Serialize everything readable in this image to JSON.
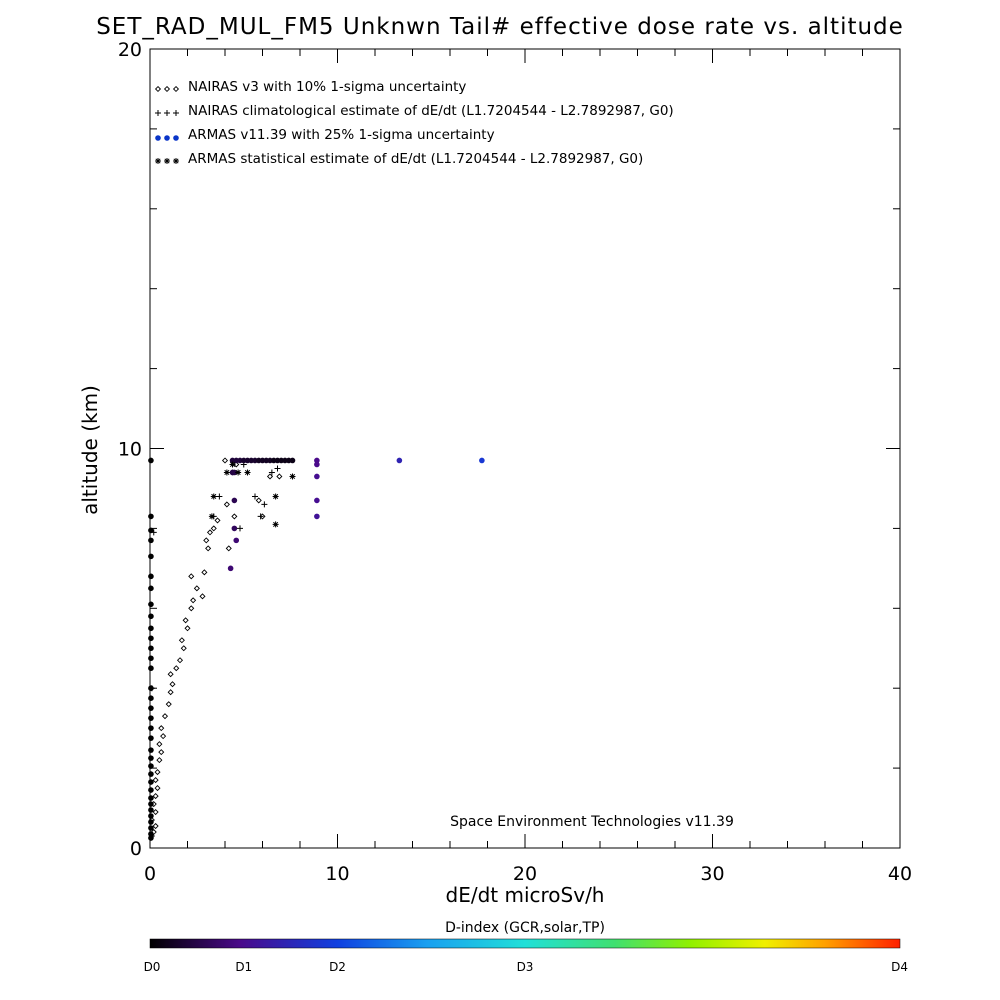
{
  "chart_data": {
    "type": "scatter",
    "title": "SET_RAD_MUL_FM5 Unknwn Tail#  effective dose rate vs. altitude",
    "xlabel": "dE/dt microSv/h",
    "ylabel": "altitude (km)",
    "xlim": [
      0,
      40
    ],
    "ylim": [
      0,
      20
    ],
    "x_ticks": [
      "0",
      "10",
      "20",
      "30",
      "40"
    ],
    "y_ticks": [
      "0",
      "10",
      "20"
    ],
    "legend_position": "top-left",
    "credit": "Space Environment Technologies v11.39",
    "colorbar": {
      "title": "D-index (GCR,solar,TP)",
      "labels": [
        "D0",
        "D1",
        "D2",
        "D3",
        "D4"
      ],
      "label_positions": [
        0,
        0.125,
        0.25,
        0.5,
        1.0
      ]
    },
    "series": [
      {
        "name": "NAIRAS v3 with 10% 1-sigma uncertainty",
        "marker": "diamond",
        "color": "#000000",
        "points": [
          [
            0.1,
            0.3
          ],
          [
            0.2,
            0.4
          ],
          [
            0.3,
            0.55
          ],
          [
            0.1,
            0.7
          ],
          [
            0.3,
            0.9
          ],
          [
            0.2,
            1.1
          ],
          [
            0.3,
            1.3
          ],
          [
            0.4,
            1.5
          ],
          [
            0.3,
            1.7
          ],
          [
            0.4,
            1.9
          ],
          [
            0.5,
            2.2
          ],
          [
            0.6,
            2.4
          ],
          [
            0.5,
            2.6
          ],
          [
            0.7,
            2.8
          ],
          [
            0.6,
            3.0
          ],
          [
            0.8,
            3.3
          ],
          [
            1.0,
            3.6
          ],
          [
            1.1,
            3.9
          ],
          [
            1.2,
            4.1
          ],
          [
            1.1,
            4.35
          ],
          [
            1.4,
            4.5
          ],
          [
            1.6,
            4.7
          ],
          [
            1.8,
            5.0
          ],
          [
            1.7,
            5.2
          ],
          [
            2.0,
            5.5
          ],
          [
            1.9,
            5.7
          ],
          [
            2.2,
            6.0
          ],
          [
            2.3,
            6.2
          ],
          [
            2.5,
            6.5
          ],
          [
            2.8,
            6.3
          ],
          [
            2.2,
            6.8
          ],
          [
            2.9,
            6.9
          ],
          [
            3.1,
            7.5
          ],
          [
            3.0,
            7.7
          ],
          [
            3.2,
            7.9
          ],
          [
            3.4,
            8.0
          ],
          [
            3.6,
            8.2
          ],
          [
            4.2,
            7.5
          ],
          [
            4.5,
            8.3
          ],
          [
            4.1,
            8.6
          ],
          [
            4.4,
            9.4
          ],
          [
            4.6,
            9.6
          ],
          [
            4.0,
            9.7
          ],
          [
            6.0,
            8.3
          ],
          [
            5.8,
            8.7
          ],
          [
            6.4,
            9.3
          ],
          [
            6.9,
            9.3
          ]
        ]
      },
      {
        "name": "NAIRAS climatological estimate of dE/dt (L1.7204544 - L2.7892987, G0)",
        "marker": "plus",
        "color": "#000000",
        "points": [
          [
            0.1,
            4.0
          ],
          [
            0.2,
            7.9
          ],
          [
            3.4,
            8.3
          ],
          [
            3.7,
            8.8
          ],
          [
            4.4,
            9.6
          ],
          [
            5.0,
            9.6
          ],
          [
            5.6,
            8.8
          ],
          [
            5.9,
            8.3
          ],
          [
            6.1,
            8.6
          ],
          [
            6.5,
            9.4
          ],
          [
            6.8,
            9.5
          ],
          [
            4.8,
            8.0
          ]
        ]
      },
      {
        "name": "ARMAS v11.39 with 25% 1-sigma uncertainty",
        "marker": "dot",
        "color": "#0a35c8",
        "points": [
          [
            0.05,
            0.25,
            0.0
          ],
          [
            0.05,
            0.35,
            0.0
          ],
          [
            0.05,
            0.5,
            0.0
          ],
          [
            0.05,
            0.65,
            0.0
          ],
          [
            0.05,
            0.8,
            0.0
          ],
          [
            0.05,
            0.95,
            0.0
          ],
          [
            0.05,
            1.1,
            0.0
          ],
          [
            0.05,
            1.25,
            0.0
          ],
          [
            0.05,
            1.45,
            0.0
          ],
          [
            0.05,
            1.65,
            0.0
          ],
          [
            0.05,
            1.85,
            0.0
          ],
          [
            0.05,
            2.05,
            0.0
          ],
          [
            0.05,
            2.25,
            0.0
          ],
          [
            0.05,
            2.45,
            0.0
          ],
          [
            0.05,
            2.75,
            0.0
          ],
          [
            0.05,
            3.0,
            0.0
          ],
          [
            0.05,
            3.25,
            0.0
          ],
          [
            0.05,
            3.5,
            0.0
          ],
          [
            0.05,
            3.75,
            0.0
          ],
          [
            0.05,
            4.0,
            0.0
          ],
          [
            0.05,
            4.5,
            0.0
          ],
          [
            0.05,
            4.75,
            0.0
          ],
          [
            0.05,
            5.0,
            0.0
          ],
          [
            0.05,
            5.25,
            0.0
          ],
          [
            0.05,
            5.5,
            0.0
          ],
          [
            0.05,
            5.8,
            0.0
          ],
          [
            0.05,
            6.1,
            0.0
          ],
          [
            0.05,
            6.5,
            0.0
          ],
          [
            0.05,
            6.8,
            0.0
          ],
          [
            0.05,
            7.3,
            0.0
          ],
          [
            0.05,
            7.7,
            0.0
          ],
          [
            0.05,
            7.95,
            0.0
          ],
          [
            0.05,
            8.3,
            0.0
          ],
          [
            0.05,
            9.7,
            0.0
          ],
          [
            4.4,
            9.7,
            0.05
          ],
          [
            4.6,
            9.7,
            0.05
          ],
          [
            4.8,
            9.7,
            0.05
          ],
          [
            5.0,
            9.7,
            0.04
          ],
          [
            5.2,
            9.7,
            0.04
          ],
          [
            5.4,
            9.7,
            0.04
          ],
          [
            5.6,
            9.7,
            0.04
          ],
          [
            5.8,
            9.7,
            0.03
          ],
          [
            6.0,
            9.7,
            0.03
          ],
          [
            6.2,
            9.7,
            0.03
          ],
          [
            6.4,
            9.7,
            0.03
          ],
          [
            6.6,
            9.7,
            0.02
          ],
          [
            6.8,
            9.7,
            0.02
          ],
          [
            7.0,
            9.7,
            0.02
          ],
          [
            7.2,
            9.7,
            0.02
          ],
          [
            7.4,
            9.7,
            0.02
          ],
          [
            7.6,
            9.7,
            0.02
          ],
          [
            4.4,
            9.4,
            0.06
          ],
          [
            4.5,
            9.4,
            0.06
          ],
          [
            4.5,
            8.7,
            0.07
          ],
          [
            4.5,
            8.0,
            0.08
          ],
          [
            4.6,
            7.7,
            0.1
          ],
          [
            4.3,
            7.0,
            0.1
          ],
          [
            8.9,
            9.7,
            0.12
          ],
          [
            8.9,
            9.6,
            0.12
          ],
          [
            8.9,
            9.3,
            0.13
          ],
          [
            8.9,
            8.7,
            0.13
          ],
          [
            8.9,
            8.3,
            0.14
          ],
          [
            13.3,
            9.7,
            0.18
          ],
          [
            17.7,
            9.7,
            0.23
          ]
        ]
      },
      {
        "name": "ARMAS statistical estimate of dE/dt (L1.7204544 - L2.7892987, G0)",
        "marker": "asterisk",
        "color": "#000000",
        "points": [
          [
            3.4,
            8.8
          ],
          [
            3.3,
            8.3
          ],
          [
            4.4,
            9.6
          ],
          [
            4.7,
            9.4
          ],
          [
            5.2,
            9.4
          ],
          [
            6.7,
            8.8
          ],
          [
            6.7,
            8.1
          ],
          [
            7.6,
            9.3
          ],
          [
            4.1,
            9.4
          ]
        ]
      }
    ]
  }
}
